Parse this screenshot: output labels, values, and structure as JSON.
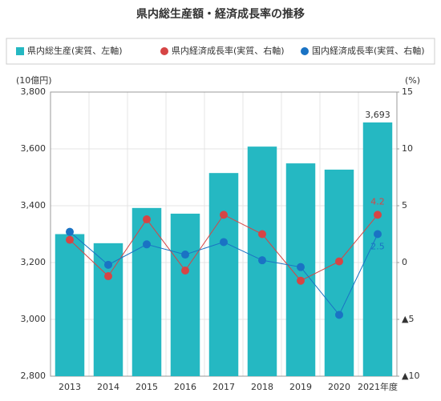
{
  "chart_data": {
    "type": "combo",
    "title": "県内総生産額・経済成長率の推移",
    "y_label": "(10億円)",
    "y2_label": "(%)",
    "categories": [
      "2013",
      "2014",
      "2015",
      "2016",
      "2017",
      "2018",
      "2019",
      "2020",
      "2021年度"
    ],
    "series": [
      {
        "name": "県内総生産(実質、左軸)",
        "type": "bar",
        "color": "#25b8c2",
        "axis": "y",
        "values": [
          3300,
          3268,
          3392,
          3372,
          3515,
          3608,
          3549,
          3527,
          3693
        ],
        "value_labels": [
          null,
          null,
          null,
          null,
          null,
          null,
          null,
          null,
          "3,693"
        ]
      },
      {
        "name": "県内経済成長率(実質、右軸)",
        "type": "line",
        "color": "#d64545",
        "axis": "y2",
        "values": [
          2.0,
          -1.2,
          3.8,
          -0.7,
          4.2,
          2.5,
          -1.6,
          0.1,
          4.2
        ],
        "value_labels": [
          null,
          null,
          null,
          null,
          null,
          null,
          null,
          null,
          "4.2"
        ]
      },
      {
        "name": "国内経済成長率(実質、右軸)",
        "type": "line",
        "color": "#1a73c4",
        "axis": "y2",
        "values": [
          2.7,
          -0.2,
          1.6,
          0.7,
          1.8,
          0.2,
          -0.4,
          -4.6,
          2.5
        ],
        "value_labels": [
          null,
          null,
          null,
          null,
          null,
          null,
          null,
          null,
          "2.5"
        ]
      }
    ],
    "ylim": [
      2800,
      3800
    ],
    "yticks": [
      {
        "value": 2800,
        "label": "2,800"
      },
      {
        "value": 3000,
        "label": "3,000"
      },
      {
        "value": 3200,
        "label": "3,200"
      },
      {
        "value": 3400,
        "label": "3,400"
      },
      {
        "value": 3600,
        "label": "3,600"
      },
      {
        "value": 3800,
        "label": "3,800"
      }
    ],
    "y2lim": [
      -10,
      15
    ],
    "y2ticks": [
      {
        "value": -10,
        "label": "▲10"
      },
      {
        "value": -5,
        "label": "▲5"
      },
      0,
      5,
      10,
      15
    ],
    "grid": true
  }
}
